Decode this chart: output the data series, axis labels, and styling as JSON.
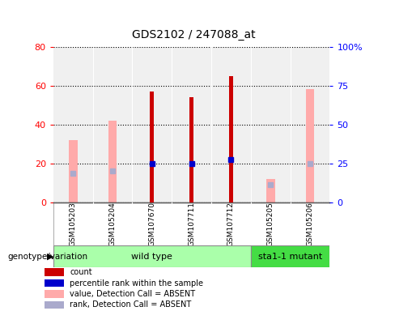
{
  "title": "GDS2102 / 247088_at",
  "samples": [
    "GSM105203",
    "GSM105204",
    "GSM107670",
    "GSM107711",
    "GSM107712",
    "GSM105205",
    "GSM105206"
  ],
  "count": [
    null,
    null,
    57,
    54,
    65,
    null,
    null
  ],
  "percentile_rank": [
    null,
    null,
    20,
    20,
    22,
    null,
    null
  ],
  "value_absent": [
    32,
    42,
    null,
    null,
    null,
    12,
    58
  ],
  "rank_absent": [
    15,
    16,
    null,
    null,
    null,
    9,
    20
  ],
  "left_ylim": [
    0,
    80
  ],
  "right_ylim": [
    0,
    100
  ],
  "left_yticks": [
    0,
    20,
    40,
    60,
    80
  ],
  "right_yticks": [
    0,
    25,
    50,
    75,
    100
  ],
  "right_yticklabels": [
    "0",
    "25",
    "50",
    "75",
    "100%"
  ],
  "color_count": "#cc0000",
  "color_percentile": "#0000cc",
  "color_value_absent": "#ffaaaa",
  "color_rank_absent": "#aaaacc",
  "group_wt_color": "#aaffaa",
  "group_mut_color": "#44dd44",
  "group_label_wt": "wild type",
  "group_label_mut": "sta1-1 mutant",
  "legend_items": [
    {
      "label": "count",
      "color": "#cc0000"
    },
    {
      "label": "percentile rank within the sample",
      "color": "#0000cc"
    },
    {
      "label": "value, Detection Call = ABSENT",
      "color": "#ffaaaa"
    },
    {
      "label": "rank, Detection Call = ABSENT",
      "color": "#aaaacc"
    }
  ],
  "plot_bg": "#ffffff",
  "axes_bg": "#f0f0f0"
}
